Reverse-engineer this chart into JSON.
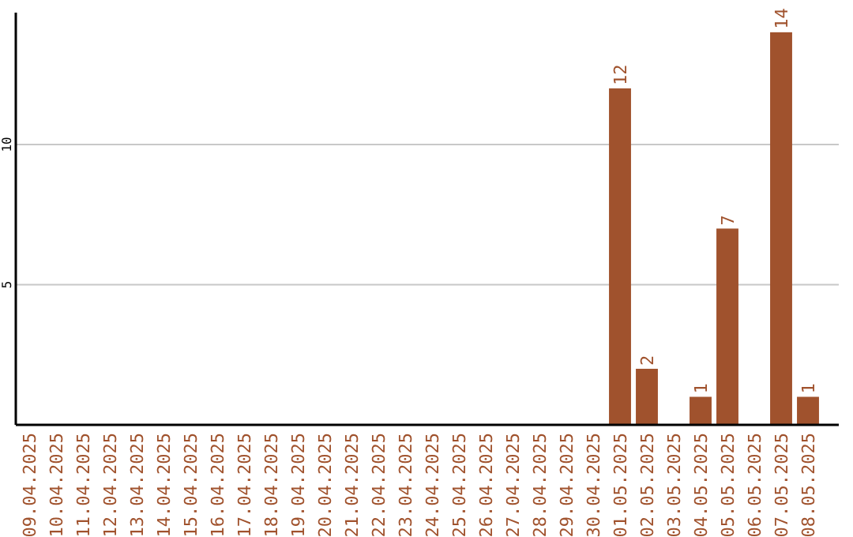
{
  "chart_data": {
    "type": "bar",
    "categories": [
      "09.04.2025",
      "10.04.2025",
      "11.04.2025",
      "12.04.2025",
      "13.04.2025",
      "14.04.2025",
      "15.04.2025",
      "16.04.2025",
      "17.04.2025",
      "18.04.2025",
      "19.04.2025",
      "20.04.2025",
      "21.04.2025",
      "22.04.2025",
      "23.04.2025",
      "24.04.2025",
      "25.04.2025",
      "26.04.2025",
      "27.04.2025",
      "28.04.2025",
      "29.04.2025",
      "30.04.2025",
      "01.05.2025",
      "02.05.2025",
      "03.05.2025",
      "04.05.2025",
      "05.05.2025",
      "06.05.2025",
      "07.05.2025",
      "08.05.2025"
    ],
    "values": [
      null,
      null,
      null,
      null,
      null,
      null,
      null,
      null,
      null,
      null,
      null,
      null,
      null,
      null,
      null,
      null,
      null,
      null,
      null,
      null,
      null,
      null,
      12,
      2,
      null,
      1,
      7,
      null,
      14,
      1
    ],
    "color": "#a0522d",
    "ylim": [
      0,
      14.7
    ],
    "yticks": [
      5,
      10
    ],
    "grid": "y",
    "data_labels": true
  }
}
